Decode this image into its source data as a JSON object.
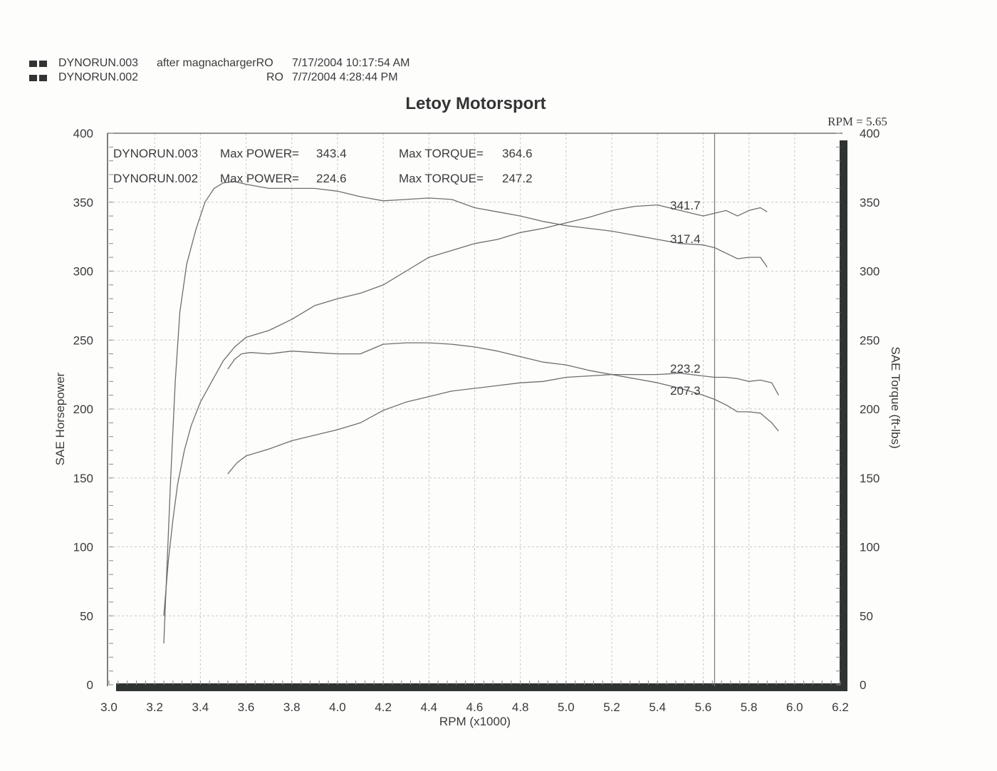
{
  "header": {
    "runs": [
      {
        "name": "DYNORUN.003",
        "note": "after magnachargerRO",
        "datetime": "7/17/2004 10:17:54 AM"
      },
      {
        "name": "DYNORUN.002",
        "note": "RO",
        "datetime": "7/7/2004 4:28:44 PM"
      }
    ]
  },
  "chart_data": {
    "type": "line",
    "title": "Letoy Motorsport",
    "xlabel": "RPM (x1000)",
    "ylabel": "SAE Horsepower",
    "y2label": "SAE Torque (ft-lbs)",
    "cursor_label": "RPM = 5.65",
    "cursor_x": 5.65,
    "xlim": [
      3.0,
      6.2
    ],
    "ylim": [
      0,
      400
    ],
    "y2lim": [
      0,
      400
    ],
    "xticks": [
      "3.0",
      "3.2",
      "3.4",
      "3.6",
      "3.8",
      "4.0",
      "4.2",
      "4.4",
      "4.6",
      "4.8",
      "5.0",
      "5.2",
      "5.4",
      "5.6",
      "5.8",
      "6.0",
      "6.2"
    ],
    "yticks": [
      "0",
      "50",
      "100",
      "150",
      "200",
      "250",
      "300",
      "350",
      "400"
    ],
    "y2ticks": [
      "0",
      "50",
      "100",
      "150",
      "200",
      "250",
      "300",
      "350",
      "400"
    ],
    "grid": true,
    "summary": [
      {
        "run": "DYNORUN.003",
        "power_label": "Max POWER=",
        "power": "343.4",
        "torque_label": "Max TORQUE=",
        "torque": "364.6"
      },
      {
        "run": "DYNORUN.002",
        "power_label": "Max POWER=",
        "power": "224.6",
        "torque_label": "Max TORQUE=",
        "torque": "247.2"
      }
    ],
    "cursor_values": [
      "341.7",
      "317.4",
      "223.2",
      "207.3"
    ],
    "series": [
      {
        "run": "DYNORUN.003",
        "measure": "power",
        "axis": "left",
        "x": [
          3.24,
          3.26,
          3.28,
          3.3,
          3.33,
          3.36,
          3.4,
          3.45,
          3.5,
          3.55,
          3.6,
          3.7,
          3.8,
          3.9,
          4.0,
          4.1,
          4.2,
          4.3,
          4.4,
          4.5,
          4.6,
          4.7,
          4.8,
          4.9,
          5.0,
          5.1,
          5.2,
          5.3,
          5.4,
          5.5,
          5.6,
          5.65,
          5.7,
          5.75,
          5.8,
          5.85,
          5.88
        ],
        "y": [
          50,
          90,
          120,
          145,
          170,
          188,
          205,
          220,
          235,
          245,
          252,
          257,
          265,
          275,
          280,
          284,
          290,
          300,
          310,
          315,
          320,
          323,
          328,
          331,
          335,
          339,
          344,
          347,
          348,
          344,
          340,
          342,
          344,
          340,
          344,
          346,
          343
        ]
      },
      {
        "run": "DYNORUN.003",
        "measure": "torque",
        "axis": "right",
        "x": [
          3.24,
          3.25,
          3.27,
          3.29,
          3.31,
          3.34,
          3.38,
          3.42,
          3.46,
          3.5,
          3.55,
          3.6,
          3.7,
          3.8,
          3.9,
          4.0,
          4.1,
          4.2,
          4.3,
          4.4,
          4.5,
          4.6,
          4.7,
          4.8,
          4.9,
          5.0,
          5.1,
          5.2,
          5.3,
          5.4,
          5.5,
          5.6,
          5.65,
          5.7,
          5.75,
          5.8,
          5.85,
          5.88
        ],
        "y": [
          30,
          70,
          150,
          220,
          270,
          305,
          330,
          350,
          360,
          364,
          365,
          363,
          360,
          360,
          360,
          358,
          354,
          351,
          352,
          353,
          352,
          346,
          343,
          340,
          336,
          333,
          331,
          329,
          326,
          323,
          320,
          319,
          317,
          313,
          309,
          310,
          310,
          303
        ]
      },
      {
        "run": "DYNORUN.002",
        "measure": "power",
        "axis": "left",
        "x": [
          3.52,
          3.56,
          3.6,
          3.7,
          3.8,
          3.9,
          4.0,
          4.1,
          4.2,
          4.3,
          4.4,
          4.5,
          4.6,
          4.7,
          4.8,
          4.9,
          5.0,
          5.1,
          5.2,
          5.3,
          5.4,
          5.5,
          5.6,
          5.65,
          5.7,
          5.75,
          5.8,
          5.85,
          5.9,
          5.93
        ],
        "y": [
          153,
          161,
          166,
          171,
          177,
          181,
          185,
          190,
          199,
          205,
          209,
          213,
          215,
          217,
          219,
          220,
          223,
          224,
          225,
          225,
          225,
          226,
          224,
          223,
          223,
          222,
          220,
          221,
          219,
          210
        ]
      },
      {
        "run": "DYNORUN.002",
        "measure": "torque",
        "axis": "right",
        "x": [
          3.52,
          3.55,
          3.58,
          3.62,
          3.7,
          3.8,
          3.9,
          4.0,
          4.1,
          4.2,
          4.3,
          4.4,
          4.5,
          4.6,
          4.7,
          4.8,
          4.9,
          5.0,
          5.1,
          5.2,
          5.3,
          5.4,
          5.5,
          5.6,
          5.65,
          5.7,
          5.75,
          5.8,
          5.85,
          5.9,
          5.93
        ],
        "y": [
          229,
          236,
          240,
          241,
          240,
          242,
          241,
          240,
          240,
          247,
          248,
          248,
          247,
          245,
          242,
          238,
          234,
          232,
          228,
          225,
          222,
          219,
          215,
          210,
          207,
          203,
          198,
          198,
          197,
          190,
          184
        ]
      }
    ]
  }
}
